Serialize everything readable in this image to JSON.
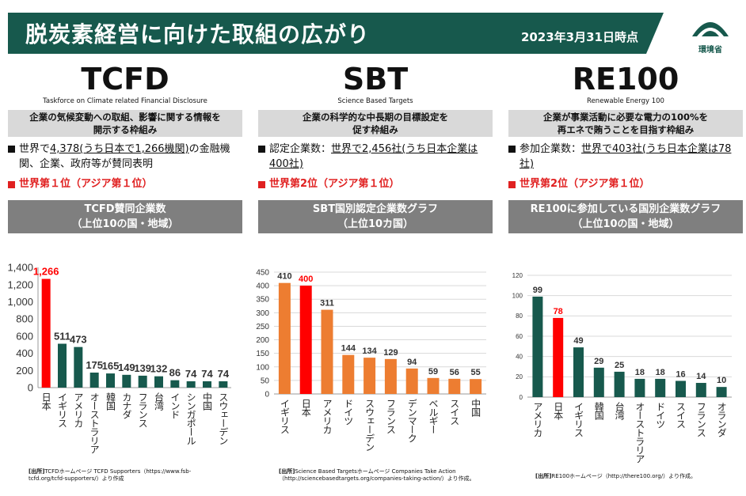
{
  "header": {
    "title": "脱炭素経営に向けた取組の広がり",
    "date": "2023年3月31日時点",
    "logo_text": "環境省"
  },
  "colors": {
    "banner": "#17594d",
    "highlight": "#ff0000",
    "tcfd_bar": "#17594d",
    "sbt_bar": "#ed7d31",
    "re100_bar": "#17594d",
    "gray_header": "#7f7f7f"
  },
  "columns": [
    {
      "abbr": "TCFD",
      "full": "Taskforce on Climate related Financial Disclosure",
      "desc": "企業の気候変動への取組、影響に関する情報を\n開示する枠組み",
      "body_pre": "世界で",
      "body_u": "4,378(うち日本で1,266機関)",
      "body_post": "の金融機関、企業、政府等が賛同表明",
      "rank": "世界第１位（アジア第１位）",
      "chart_header": "TCFD賛同企業数\n（上位10の国・地域）",
      "source_label": "[出所]",
      "source": "TCFDホームページ TCFD Supporters（https://www.fsb-tcfd.org/tcfd-supporters/）より作成"
    },
    {
      "abbr": "SBT",
      "full": "Science Based Targets",
      "desc": "企業の科学的な中長期の目標設定を\n促す枠組み",
      "body_pre": "認定企業数：",
      "body_u": "世界で2,456社(うち日本企業は400社)",
      "body_post": "",
      "rank": "世界第2位（アジア第１位）",
      "chart_header": "SBT国別認定企業数グラフ\n（上位10カ国）",
      "source_label": "[出所]",
      "source": "Science Based Targetsホームページ Companies Take Action（http://sciencebasedtargets.org/companies-taking-action/）より作成。"
    },
    {
      "abbr": "RE100",
      "full": "Renewable Energy 100",
      "desc": "企業が事業活動に必要な電力の100%を\n再エネで賄うことを目指す枠組み",
      "body_pre": "参加企業数：",
      "body_u": "世界で403社(うち日本企業は78社)",
      "body_post": "",
      "rank": "世界第2位（アジア第１位）",
      "chart_header": "RE100に参加している国別企業数グラフ\n（上位10の国・地域）",
      "source_label": "[出所]",
      "source": "RE100ホームページ（http://there100.org/）より作成。"
    }
  ],
  "chart_data": [
    {
      "type": "bar",
      "categories": [
        "日本",
        "イギリス",
        "アメリカ",
        "オーストラリア",
        "韓国",
        "カナダ",
        "フランス",
        "台湾",
        "インド",
        "シンガポール",
        "中国",
        "スウェーデン"
      ],
      "values": [
        1266,
        511,
        473,
        175,
        165,
        149,
        139,
        132,
        86,
        74,
        74,
        74
      ],
      "highlight_index": 0,
      "ylim": [
        0,
        1400
      ],
      "yticks": [
        "0",
        "200",
        "400",
        "600",
        "800",
        "1,000",
        "1,200",
        "1,400"
      ],
      "value_labels": [
        "1,266",
        "511",
        "473",
        "175",
        "165",
        "149",
        "139",
        "132",
        "86",
        "74",
        "74",
        "74"
      ],
      "grid": false
    },
    {
      "type": "bar",
      "categories": [
        "イギリス",
        "日本",
        "アメリカ",
        "ドイツ",
        "スウェーデン",
        "フランス",
        "デンマーク",
        "ベルギー",
        "スイス",
        "中国"
      ],
      "values": [
        410,
        400,
        311,
        144,
        134,
        129,
        94,
        59,
        56,
        55
      ],
      "highlight_index": 1,
      "ylim": [
        0,
        450
      ],
      "yticks": [
        "0",
        "50",
        "100",
        "150",
        "200",
        "250",
        "300",
        "350",
        "400",
        "450"
      ],
      "value_labels": [
        "410",
        "400",
        "311",
        "144",
        "134",
        "129",
        "94",
        "59",
        "56",
        "55"
      ],
      "grid": true
    },
    {
      "type": "bar",
      "categories": [
        "アメリカ",
        "日本",
        "イギリス",
        "韓国",
        "台湾",
        "オーストラリア",
        "ドイツ",
        "スイス",
        "フランス",
        "オランダ"
      ],
      "values": [
        99,
        78,
        49,
        29,
        25,
        18,
        18,
        16,
        14,
        10
      ],
      "highlight_index": 1,
      "ylim": [
        0,
        120
      ],
      "yticks": [
        "0",
        "20",
        "40",
        "60",
        "80",
        "100",
        "120"
      ],
      "value_labels": [
        "99",
        "78",
        "49",
        "29",
        "25",
        "18",
        "18",
        "16",
        "14",
        "10"
      ],
      "grid": true
    }
  ]
}
